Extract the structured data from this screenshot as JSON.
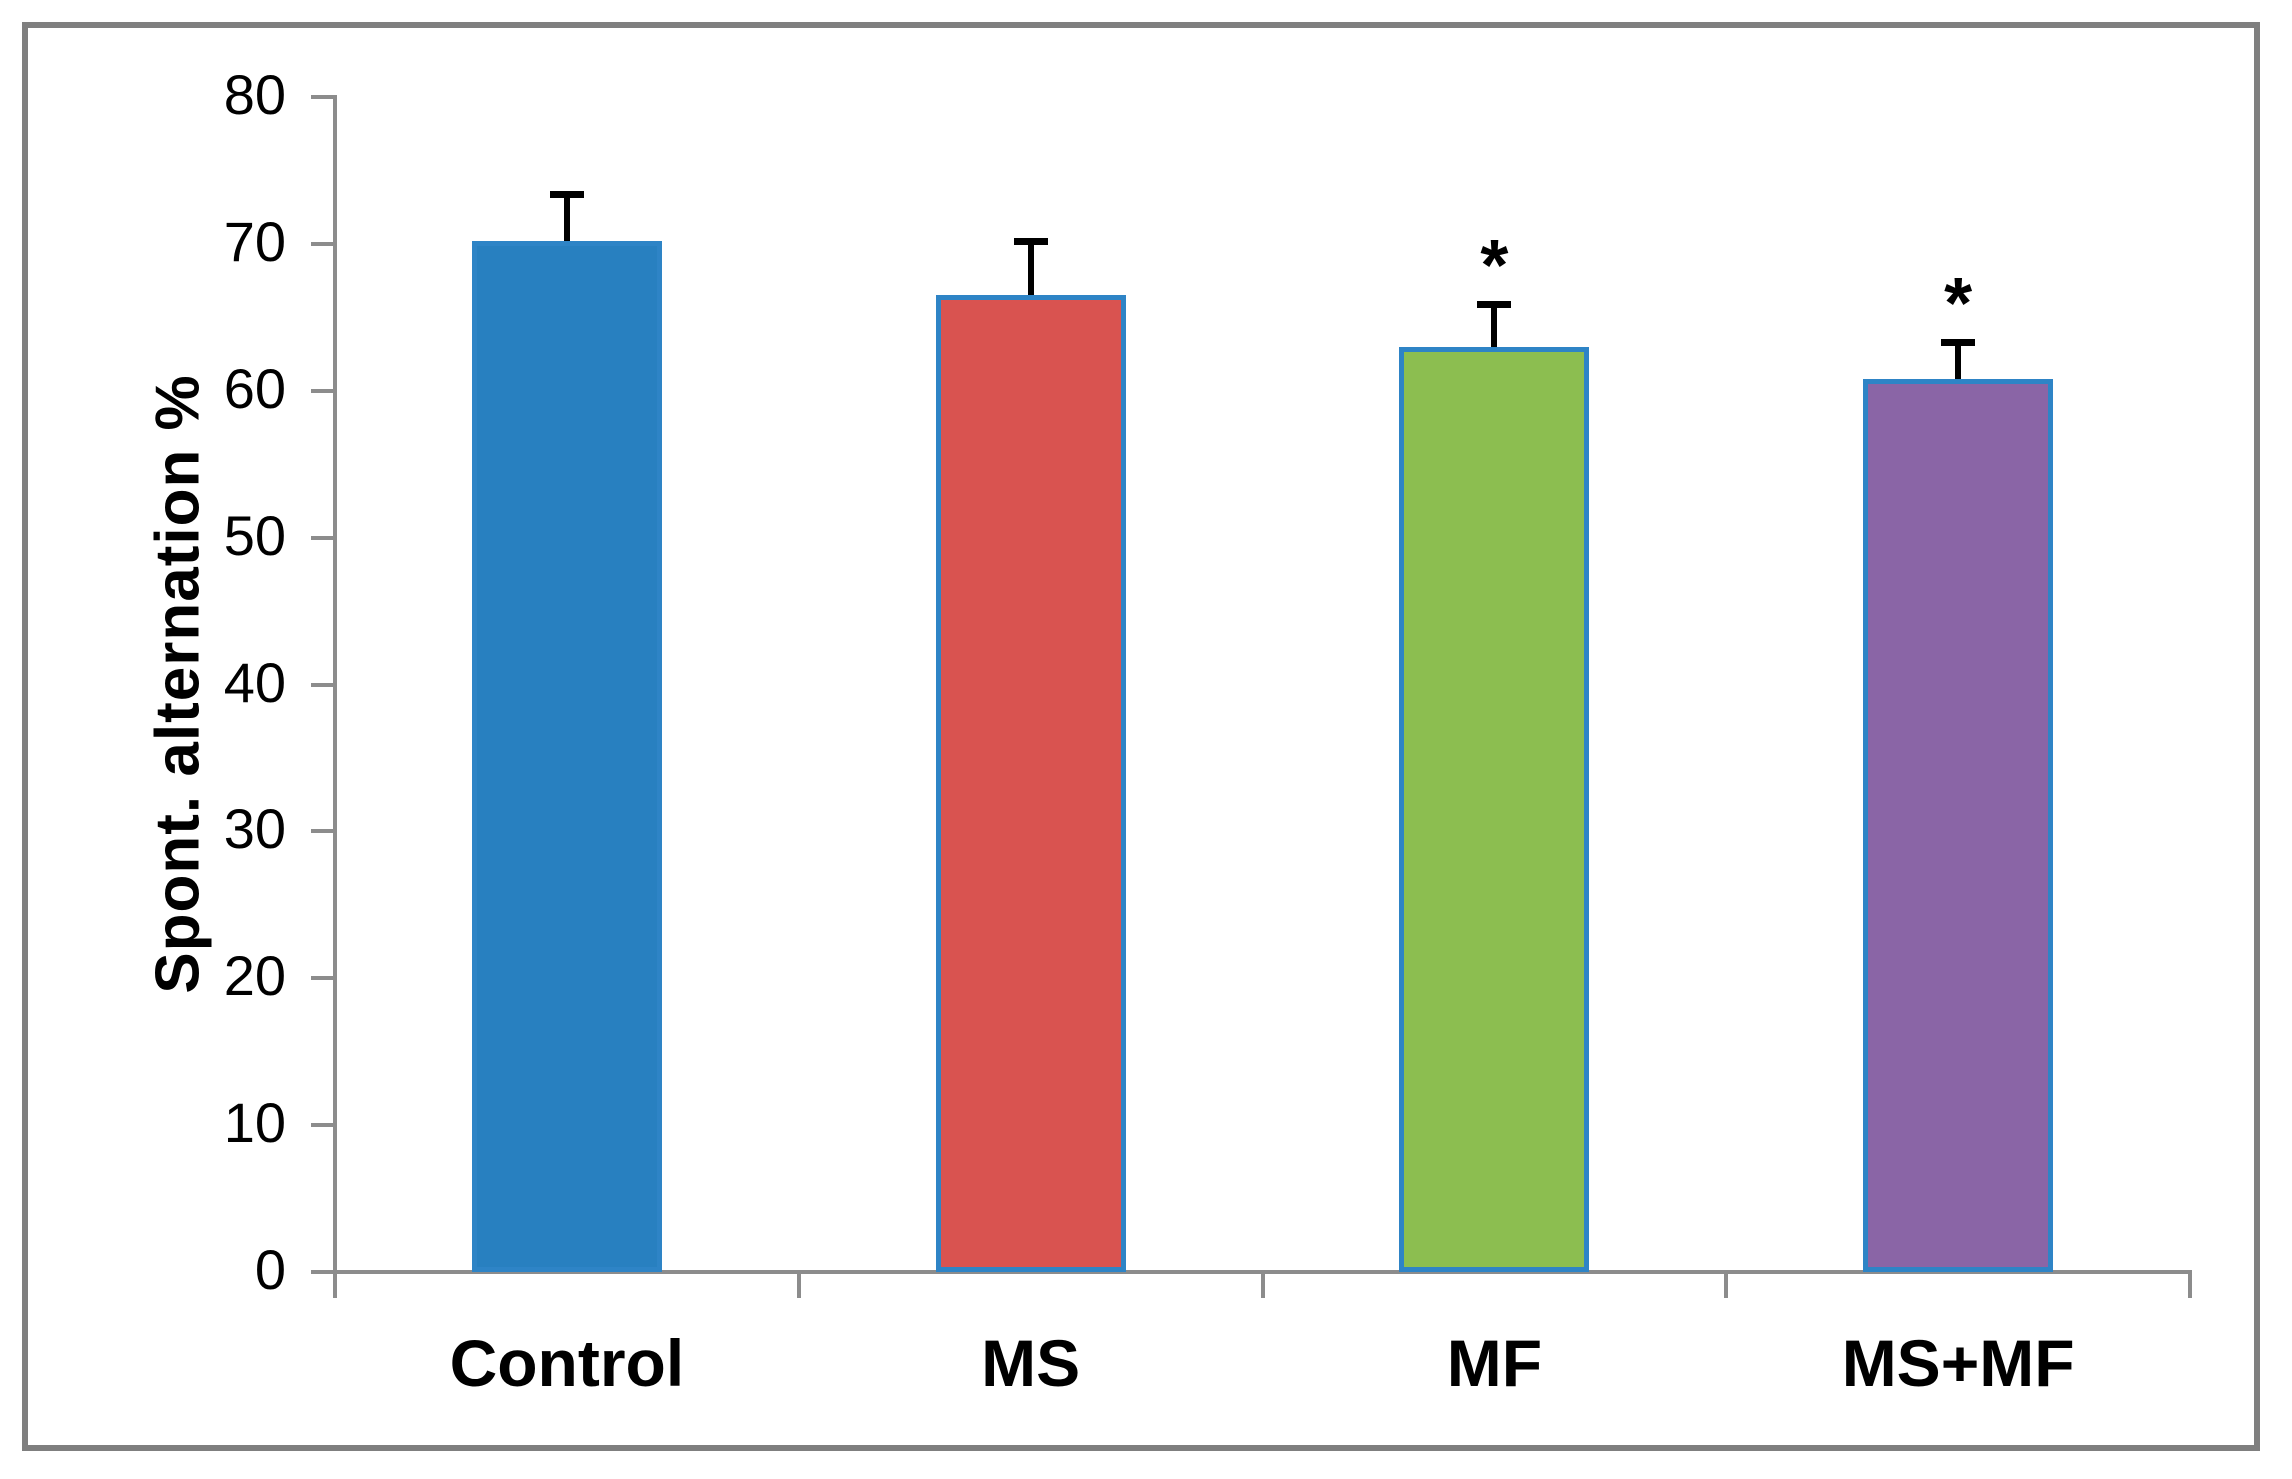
{
  "chart_data": {
    "type": "bar",
    "title": "",
    "xlabel": "",
    "ylabel": "Spont. alternation %",
    "categories": [
      "Control",
      "MS",
      "MF",
      "MS+MF"
    ],
    "values": [
      70.2,
      66.5,
      63.0,
      60.8
    ],
    "error_bars": [
      3.2,
      3.7,
      2.9,
      2.5
    ],
    "annotations": [
      "",
      "",
      "*",
      "*"
    ],
    "ylim": [
      0,
      80
    ],
    "yticks": [
      0,
      10,
      20,
      30,
      40,
      50,
      60,
      70,
      80
    ],
    "grid": false,
    "legend_position": "none",
    "bar_colors": [
      "#2880C0",
      "#D95350",
      "#8CBE50",
      "#8A65A6"
    ],
    "bar_border_color": "#2E84C6",
    "error_bar_color": "#000000",
    "axis_color": "#8C8C8C",
    "frame_border_color": "#7F7F7F",
    "text_color": "#000000"
  }
}
